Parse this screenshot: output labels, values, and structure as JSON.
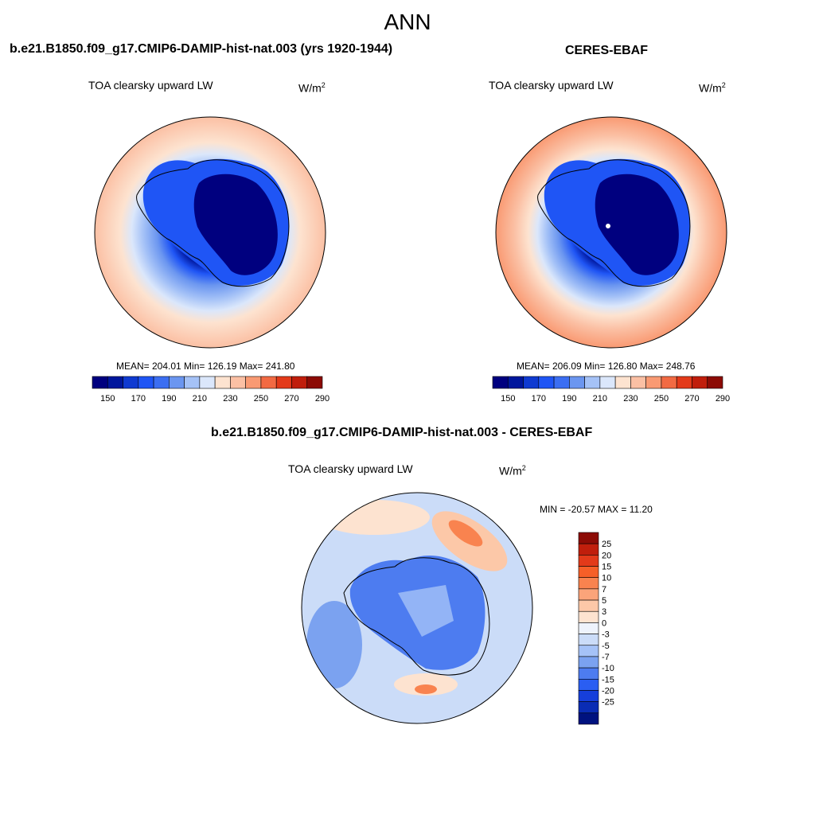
{
  "figure": {
    "season": "ANN",
    "model_title": "b.e21.B1850.f09_g17.CMIP6-DAMIP-hist-nat.003 (yrs 1920-1944)",
    "obs_title": "CERES-EBAF",
    "diff_title": "b.e21.B1850.f09_g17.CMIP6-DAMIP-hist-nat.003 - CERES-EBAF"
  },
  "panels": {
    "model": {
      "variable": "TOA clearsky upward LW",
      "units_base": "W/m",
      "units_exp": "2",
      "stats": "MEAN= 204.01  Min= 126.19  Max= 241.80"
    },
    "obs": {
      "variable": "TOA clearsky upward LW",
      "units_base": "W/m",
      "units_exp": "2",
      "stats": "MEAN= 206.09  Min= 126.80  Max= 248.76"
    },
    "diff": {
      "variable": "TOA clearsky upward LW",
      "units_base": "W/m",
      "units_exp": "2",
      "stats": "MIN = -20.57 MAX =  11.20"
    }
  },
  "colorbars": {
    "absolute": {
      "colors": [
        "#00007f",
        "#00169c",
        "#0f3ad1",
        "#1f55f5",
        "#3b6ef2",
        "#6b96f0",
        "#a5c2f7",
        "#dbe7fb",
        "#fde3d0",
        "#fbc0a4",
        "#f99a73",
        "#f26a43",
        "#e33a1a",
        "#c01e0c",
        "#8c0b05"
      ],
      "labels": [
        "150",
        "170",
        "190",
        "210",
        "230",
        "250",
        "270",
        "290"
      ]
    },
    "difference": {
      "colors": [
        "#8c0b05",
        "#c01e0c",
        "#e33a1a",
        "#f65f28",
        "#f9834f",
        "#fba47a",
        "#fcc8a8",
        "#fde3d0",
        "#eef3fc",
        "#cbdcf8",
        "#a5c2f7",
        "#7ba2f0",
        "#4d7cf0",
        "#2a5ef2",
        "#163fdb",
        "#0a2cb4",
        "#00127f"
      ],
      "labels": [
        "25",
        "20",
        "15",
        "10",
        "7",
        "5",
        "3",
        "0",
        "-3",
        "-5",
        "-7",
        "-10",
        "-15",
        "-20",
        "-25"
      ]
    }
  }
}
